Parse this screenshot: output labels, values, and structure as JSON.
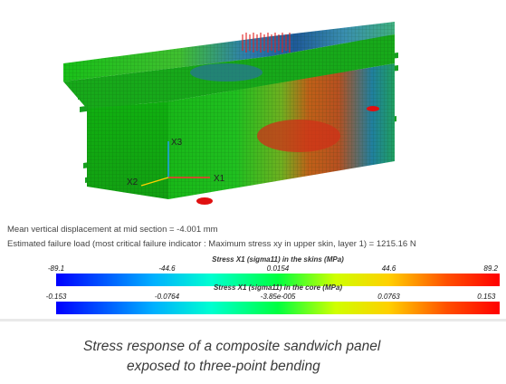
{
  "info": {
    "displacement": "Mean vertical displacement at mid section = -4.001 mm",
    "failure": "Estimated failure load (most critical failure indicator : Maximum stress xy in upper skin, layer 1) = 1215.16 N"
  },
  "axes": {
    "x1": "X1",
    "x2": "X2",
    "x3": "X3"
  },
  "scalebar_skins": {
    "title": "Stress X1 (sigma11) in the skins (MPa)",
    "ticks": [
      "-89.1",
      "-44.6",
      "0.0154",
      "44.6",
      "89.2"
    ],
    "range": [
      -89.1,
      89.2
    ]
  },
  "scalebar_core": {
    "title": "Stress X1 (sigma11) in the core (MPa)",
    "ticks": [
      "-0.153",
      "-0.0764",
      "-3.85e-005",
      "0.0763",
      "0.153"
    ],
    "range": [
      -0.153,
      0.153
    ]
  },
  "caption": {
    "line1": "Stress response of a composite sandwich panel",
    "line2": "exposed to three-point bending"
  },
  "colors": {
    "compression": "#0000ff",
    "neutral": "#00ff40",
    "tension": "#ff0000",
    "load_arrows": "#e02020",
    "supports": "#e01010"
  }
}
